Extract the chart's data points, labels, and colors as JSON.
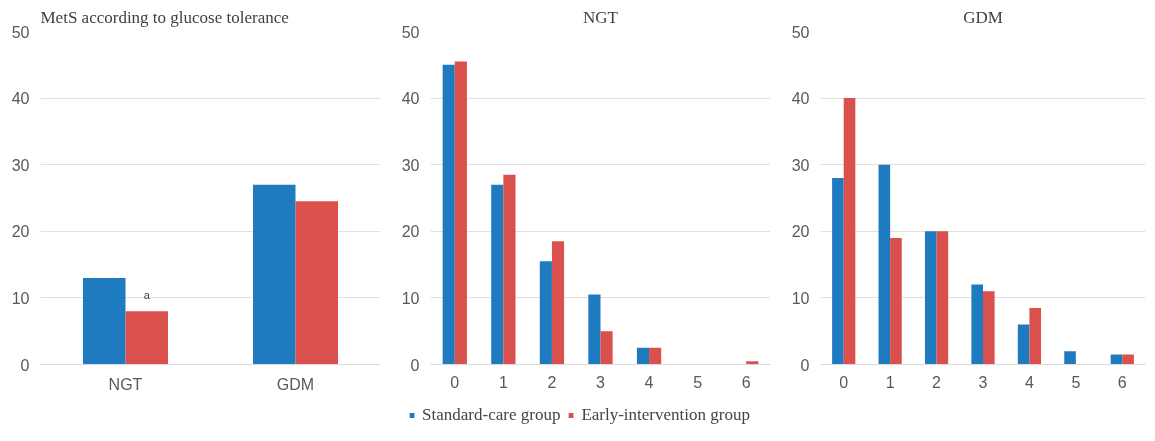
{
  "chart_data": [
    {
      "type": "bar",
      "title": "MetS according to glucose tolerance",
      "categories": [
        "NGT",
        "GDM"
      ],
      "series": [
        {
          "color": "#1f7bbf",
          "values": [
            13,
            27
          ]
        },
        {
          "color": "#d9504c",
          "values": [
            8,
            24.5
          ]
        }
      ],
      "annotations": [
        {
          "text": "a",
          "x": "NGT",
          "y": 9.5
        }
      ],
      "ylim": [
        0,
        50
      ],
      "yticks": [
        0,
        10,
        20,
        30,
        40,
        50
      ],
      "grid": "y",
      "legend": false
    },
    {
      "type": "bar",
      "title": "NGT",
      "categories": [
        "0",
        "1",
        "2",
        "3",
        "4",
        "5",
        "6"
      ],
      "series": [
        {
          "name": "Standard-care group",
          "color": "#1f7bbf",
          "values": [
            45,
            27,
            15.5,
            10.5,
            2.5,
            0,
            0
          ]
        },
        {
          "name": "Early-intervention group",
          "color": "#d9504c",
          "values": [
            45.5,
            28.5,
            18.5,
            5,
            2.5,
            0,
            0.5
          ]
        }
      ],
      "ylim": [
        0,
        50
      ],
      "yticks": [
        0,
        10,
        20,
        30,
        40,
        50
      ],
      "grid": "y",
      "legend": "bottom"
    },
    {
      "type": "bar",
      "title": "GDM",
      "categories": [
        "0",
        "1",
        "2",
        "3",
        "4",
        "5",
        "6"
      ],
      "series": [
        {
          "color": "#1f7bbf",
          "values": [
            28,
            30,
            20,
            12,
            6,
            2,
            1.5
          ]
        },
        {
          "color": "#d9504c",
          "values": [
            40,
            19,
            20,
            11,
            8.5,
            0,
            1.5
          ]
        }
      ],
      "ylim": [
        0,
        50
      ],
      "yticks": [
        0,
        10,
        20,
        30,
        40,
        50
      ],
      "grid": "y",
      "legend": false
    }
  ]
}
